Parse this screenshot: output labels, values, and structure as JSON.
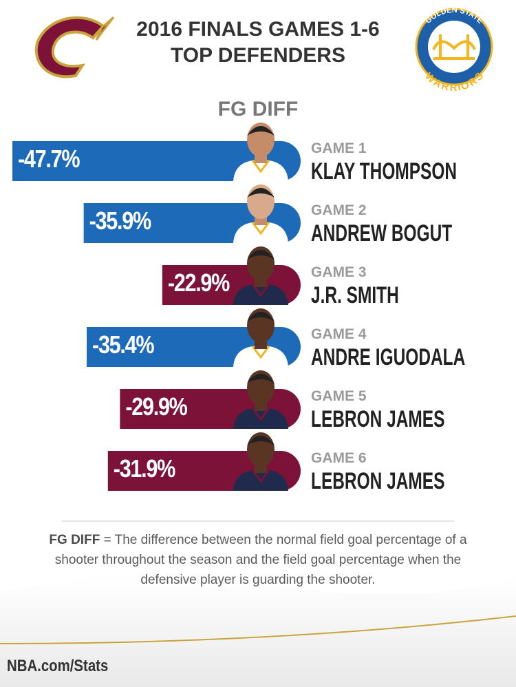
{
  "title": "2016 FINALS GAMES 1-6",
  "subtitle": "TOP DEFENDERS",
  "logo_text": [
    "GOLDEN STATE",
    "WARRIORS"
  ],
  "chart_data": {
    "type": "bar",
    "orientation": "horizontal",
    "title": "FG DIFF",
    "categories": [
      "GAME 1",
      "GAME 2",
      "GAME 3",
      "GAME 4",
      "GAME 5",
      "GAME 6"
    ],
    "players": [
      "KLAY THOMPSON",
      "ANDREW BOGUT",
      "J.R. SMITH",
      "ANDRE IGUODALA",
      "LEBRON JAMES",
      "LEBRON JAMES"
    ],
    "values": [
      -47.7,
      -35.9,
      -22.9,
      -35.4,
      -29.9,
      -31.9
    ],
    "value_labels": [
      "-47.7%",
      "-35.9%",
      "-22.9%",
      "-35.4%",
      "-29.9%",
      "-31.9%"
    ],
    "colors": [
      "#1d6ab8",
      "#1d6ab8",
      "#7d1238",
      "#1d6ab8",
      "#7d1238",
      "#7d1238"
    ]
  },
  "footnote": {
    "term": "FG DIFF",
    "definition": "= The difference between the normal field goal percentage of a shooter throughout the season and the field goal percentage when the defensive player is guarding the shooter."
  },
  "source": "NBA.com/Stats"
}
